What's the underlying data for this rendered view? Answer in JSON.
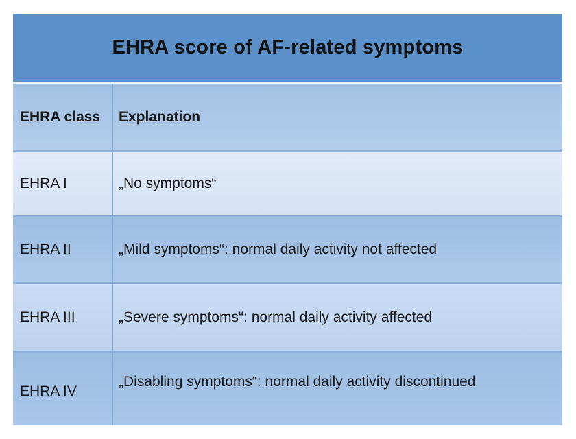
{
  "slide": {
    "title": "EHRA score of AF-related symptoms"
  },
  "table": {
    "columns": [
      "EHRA class",
      "Explanation"
    ],
    "rows": [
      {
        "ehra_class": "EHRA I",
        "explanation": "„No symptoms“"
      },
      {
        "ehra_class": "EHRA II",
        "explanation": "„Mild symptoms“: normal daily activity not affected"
      },
      {
        "ehra_class": "EHRA III",
        "explanation": "„Severe symptoms“: normal daily activity affected"
      },
      {
        "ehra_class": "EHRA IV",
        "explanation": "„Disabling symptoms“: normal daily activity discontinued"
      }
    ]
  },
  "palette": {
    "title_bg": "#5b91c8",
    "title_text": "#121212",
    "body_text": "#1a1a1a",
    "separator": "#edf2fa",
    "header_top": "#a4c2e4",
    "header_bottom": "#b4cdeb",
    "row1_top": "#e1eaf9",
    "row1_bottom": "#d5e2f4",
    "row2_top": "#9dbde2",
    "row2_bottom": "#afcaea",
    "row3_top": "#cadcf4",
    "row3_bottom": "#bed3ee",
    "row4_top": "#9cbde2",
    "row4_bottom": "#aac6e8",
    "row_border": "#8caed9",
    "col_divider": "#7da6d2"
  }
}
